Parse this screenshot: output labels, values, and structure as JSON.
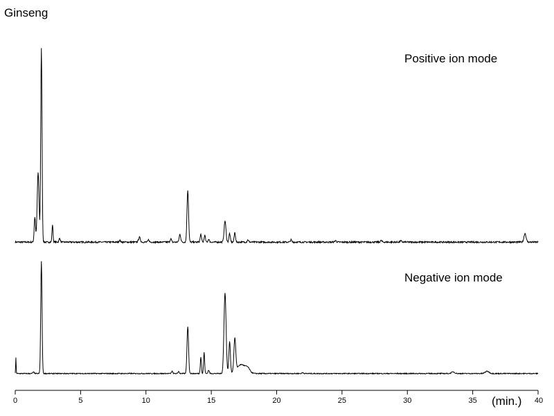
{
  "chart_data": {
    "type": "line",
    "title": "Ginseng",
    "xlabel": "(min.)",
    "ylabel": "",
    "xlim": [
      0,
      40
    ],
    "x_ticks": [
      0,
      5,
      10,
      15,
      20,
      25,
      30,
      35,
      40
    ],
    "x_tick_labels": [
      "0",
      "5",
      "10",
      "15",
      "20",
      "25",
      "30",
      "35",
      "40"
    ],
    "grid": false,
    "legend": "none",
    "line_color": "#000000",
    "panels": [
      {
        "label": "Positive ion mode",
        "baseline": 0.01,
        "noise": 0.004,
        "peaks": [
          {
            "t": 1.5,
            "h": 0.13,
            "w": 0.05
          },
          {
            "t": 1.75,
            "h": 0.36,
            "w": 0.07
          },
          {
            "t": 2.0,
            "h": 1.0,
            "w": 0.05
          },
          {
            "t": 2.85,
            "h": 0.09,
            "w": 0.04
          },
          {
            "t": 3.4,
            "h": 0.02,
            "w": 0.05
          },
          {
            "t": 8.0,
            "h": 0.01,
            "w": 0.05
          },
          {
            "t": 9.5,
            "h": 0.025,
            "w": 0.07
          },
          {
            "t": 10.2,
            "h": 0.012,
            "w": 0.05
          },
          {
            "t": 11.9,
            "h": 0.018,
            "w": 0.05
          },
          {
            "t": 12.6,
            "h": 0.04,
            "w": 0.06
          },
          {
            "t": 13.2,
            "h": 0.27,
            "w": 0.06
          },
          {
            "t": 14.2,
            "h": 0.04,
            "w": 0.05
          },
          {
            "t": 14.5,
            "h": 0.035,
            "w": 0.05
          },
          {
            "t": 14.8,
            "h": 0.015,
            "w": 0.05
          },
          {
            "t": 16.05,
            "h": 0.11,
            "w": 0.07
          },
          {
            "t": 16.4,
            "h": 0.045,
            "w": 0.05
          },
          {
            "t": 16.8,
            "h": 0.05,
            "w": 0.05
          },
          {
            "t": 17.8,
            "h": 0.012,
            "w": 0.05
          },
          {
            "t": 21.1,
            "h": 0.012,
            "w": 0.05
          },
          {
            "t": 24.5,
            "h": 0.008,
            "w": 0.06
          },
          {
            "t": 28.0,
            "h": 0.008,
            "w": 0.06
          },
          {
            "t": 29.5,
            "h": 0.006,
            "w": 0.06
          },
          {
            "t": 39.0,
            "h": 0.045,
            "w": 0.08
          }
        ]
      },
      {
        "label": "Negative ion mode",
        "baseline": 0.02,
        "noise": 0.004,
        "peaks": [
          {
            "t": 0.05,
            "h": 0.14,
            "w": 0.02
          },
          {
            "t": 1.4,
            "h": 0.012,
            "w": 0.06
          },
          {
            "t": 2.0,
            "h": 1.0,
            "w": 0.05
          },
          {
            "t": 12.0,
            "h": 0.02,
            "w": 0.05
          },
          {
            "t": 12.5,
            "h": 0.018,
            "w": 0.05
          },
          {
            "t": 13.2,
            "h": 0.42,
            "w": 0.06
          },
          {
            "t": 14.2,
            "h": 0.15,
            "w": 0.04
          },
          {
            "t": 14.45,
            "h": 0.19,
            "w": 0.04
          },
          {
            "t": 14.8,
            "h": 0.03,
            "w": 0.05
          },
          {
            "t": 16.05,
            "h": 0.72,
            "w": 0.08
          },
          {
            "t": 16.4,
            "h": 0.28,
            "w": 0.06
          },
          {
            "t": 16.8,
            "h": 0.29,
            "w": 0.07
          },
          {
            "t": 17.3,
            "h": 0.08,
            "w": 0.35
          },
          {
            "t": 17.8,
            "h": 0.03,
            "w": 0.15
          },
          {
            "t": 22.0,
            "h": 0.008,
            "w": 0.06
          },
          {
            "t": 33.5,
            "h": 0.015,
            "w": 0.12
          },
          {
            "t": 36.1,
            "h": 0.02,
            "w": 0.15
          }
        ]
      }
    ]
  }
}
